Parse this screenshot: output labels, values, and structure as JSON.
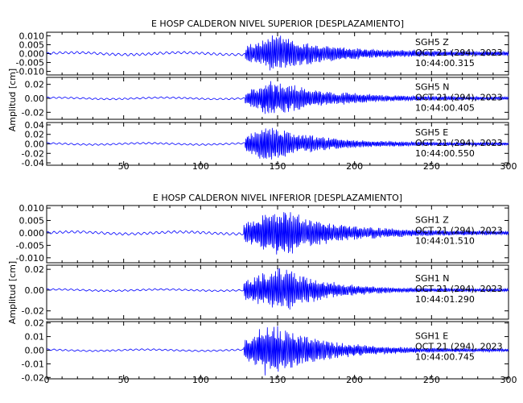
{
  "colors": {
    "trace": "#0000ff",
    "axis": "#000000",
    "background": "#ffffff"
  },
  "chart_data": [
    {
      "type": "line",
      "title": "E HOSP CALDERON NIVEL SUPERIOR [DESPLAZAMIENTO]",
      "ylabel": "Amplitud [cm]",
      "xlim": [
        0,
        300
      ],
      "x_ticks": [
        50,
        100,
        150,
        200,
        250,
        300
      ],
      "panels": [
        {
          "channel": "SGH5   Z",
          "date": "OCT 21 (294), 2023",
          "time": "10:44:00.315",
          "ylim": [
            -0.012,
            0.012
          ],
          "y_ticks": [
            0.01,
            0.005,
            0.0,
            -0.005,
            -0.01
          ],
          "y_tick_labels": [
            "0.010",
            "0.005",
            "0.000",
            "-0.005",
            "-0.010"
          ],
          "peak_amplitude": 0.011,
          "pre_event_amplitude": 0.0007,
          "trigger_time": 129,
          "peak_time": 147,
          "decay_end_time": 265
        },
        {
          "channel": "SGH5   N",
          "date": "OCT 21 (294), 2023",
          "time": "10:44:00.405",
          "ylim": [
            -0.03,
            0.03
          ],
          "y_ticks": [
            0.02,
            0.0,
            -0.02
          ],
          "y_tick_labels": [
            "0.02",
            "0.00",
            "-0.02"
          ],
          "peak_amplitude": 0.028,
          "pre_event_amplitude": 0.0012,
          "trigger_time": 129,
          "peak_time": 145,
          "decay_end_time": 260
        },
        {
          "channel": "SGH5   E",
          "date": "OCT 21 (294), 2023",
          "time": "10:44:00.550",
          "ylim": [
            -0.045,
            0.045
          ],
          "y_ticks": [
            0.04,
            0.02,
            0.0,
            -0.02,
            -0.04
          ],
          "y_tick_labels": [
            "0.04",
            "0.02",
            "0.00",
            "-0.02",
            "-0.04"
          ],
          "peak_amplitude": 0.042,
          "pre_event_amplitude": 0.0018,
          "trigger_time": 129,
          "peak_time": 142,
          "decay_end_time": 240
        }
      ]
    },
    {
      "type": "line",
      "title": "E HOSP CALDERON NIVEL INFERIOR [DESPLAZAMIENTO]",
      "ylabel": "Amplitud [cm]",
      "xlim": [
        0,
        300
      ],
      "x_ticks": [
        0,
        50,
        100,
        150,
        200,
        250,
        300
      ],
      "panels": [
        {
          "channel": "SGH1   Z",
          "date": "OCT 21 (294), 2023",
          "time": "10:44:01.510",
          "ylim": [
            -0.012,
            0.011
          ],
          "y_ticks": [
            0.01,
            0.005,
            0.0,
            -0.005,
            -0.01
          ],
          "y_tick_labels": [
            "0.010",
            "0.005",
            "0.000",
            "-0.005",
            "-0.010"
          ],
          "peak_amplitude": 0.011,
          "pre_event_amplitude": 0.0005,
          "trigger_time": 128,
          "peak_time": 150,
          "decay_end_time": 255
        },
        {
          "channel": "SGH1   N",
          "date": "OCT 21 (294), 2023",
          "time": "10:44:01.290",
          "ylim": [
            -0.028,
            0.024
          ],
          "y_ticks": [
            0.02,
            0.0,
            -0.02
          ],
          "y_tick_labels": [
            "0.02",
            "0.00",
            "-0.02"
          ],
          "peak_amplitude": 0.024,
          "pre_event_amplitude": 0.0008,
          "trigger_time": 128,
          "peak_time": 152,
          "decay_end_time": 240
        },
        {
          "channel": "SGH1   E",
          "date": "OCT 21 (294), 2023",
          "time": "10:44:00.745",
          "ylim": [
            -0.021,
            0.021
          ],
          "y_ticks": [
            0.02,
            0.01,
            0.0,
            -0.01,
            -0.02
          ],
          "y_tick_labels": [
            "0.02",
            "0.01",
            "0.00",
            "-0.01",
            "-0.02"
          ],
          "peak_amplitude": 0.021,
          "pre_event_amplitude": 0.0006,
          "trigger_time": 128,
          "peak_time": 145,
          "decay_end_time": 250
        }
      ]
    }
  ]
}
